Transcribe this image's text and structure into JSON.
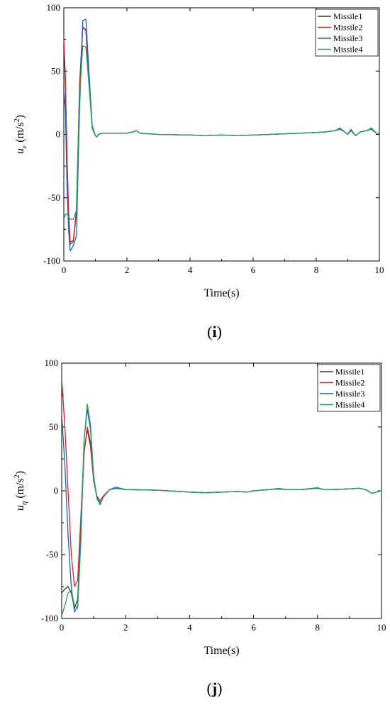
{
  "chart_data": [
    {
      "type": "line",
      "panel_label": "i",
      "xlabel": "Time(s)",
      "ylabel_base": "u",
      "ylabel_sub": "ε",
      "ylabel_unit": " (m/s",
      "ylabel_sup": "2",
      "ylabel_close": ")",
      "xlim": [
        0,
        10
      ],
      "ylim": [
        -100,
        100
      ],
      "xticks": [
        0,
        2,
        4,
        6,
        8,
        10
      ],
      "yticks": [
        -100,
        -50,
        0,
        50,
        100
      ],
      "grid": false,
      "legend_position": "top-right",
      "series": [
        {
          "name": "Missile1",
          "color": "#333333",
          "x": [
            0,
            0.05,
            0.1,
            0.15,
            0.2,
            0.3,
            0.4,
            0.5,
            0.6,
            0.7,
            0.8,
            0.9,
            1.0,
            1.05,
            1.1,
            1.2,
            1.5,
            2.0,
            2.2,
            2.3,
            2.4,
            2.7,
            3.0,
            4.0,
            4.5,
            5.0,
            5.5,
            6.0,
            6.5,
            7.0,
            7.5,
            8.0,
            8.3,
            8.6,
            8.75,
            8.9,
            9.0,
            9.1,
            9.25,
            9.4,
            9.6,
            9.75,
            9.9,
            10.0
          ],
          "y": [
            70,
            40,
            -20,
            -60,
            -85,
            -84,
            -60,
            40,
            85,
            82,
            40,
            5,
            -1,
            -2,
            0,
            1,
            1,
            1,
            2,
            3,
            1,
            0.5,
            0,
            -0.5,
            -1,
            -0.5,
            -1,
            -0.5,
            0,
            0.5,
            1,
            1.5,
            2,
            3,
            4,
            2,
            0,
            3,
            -1,
            2,
            3,
            4,
            1,
            1
          ]
        },
        {
          "name": "Missile2",
          "color": "#d62728",
          "x": [
            0,
            0.05,
            0.1,
            0.15,
            0.2,
            0.3,
            0.4,
            0.5,
            0.6,
            0.7,
            0.8,
            0.9,
            1.0,
            1.05,
            1.1,
            1.2,
            1.5,
            2.0,
            2.2,
            2.3,
            2.4,
            2.7,
            3.0,
            4.0,
            4.5,
            5.0,
            5.5,
            6.0,
            6.5,
            7.0,
            7.5,
            8.0,
            8.3,
            8.6,
            8.75,
            8.9,
            9.0,
            9.1,
            9.25,
            9.4,
            9.6,
            9.75,
            9.9,
            10.0
          ],
          "y": [
            75,
            45,
            -15,
            -60,
            -87,
            -85,
            -62,
            35,
            84,
            83,
            42,
            6,
            -1,
            -2,
            0,
            1,
            1,
            1,
            2,
            3,
            1,
            0.5,
            0,
            -0.5,
            -1,
            -0.5,
            -1,
            -0.5,
            0,
            0.5,
            1,
            1.5,
            2,
            3,
            4,
            2,
            0,
            3,
            -1,
            2,
            3,
            4,
            1,
            1
          ]
        },
        {
          "name": "Missile3",
          "color": "#1f5fbf",
          "x": [
            0,
            0.05,
            0.1,
            0.15,
            0.2,
            0.3,
            0.4,
            0.5,
            0.6,
            0.7,
            0.8,
            0.9,
            1.0,
            1.05,
            1.1,
            1.2,
            1.5,
            2.0,
            2.2,
            2.3,
            2.4,
            2.7,
            3.0,
            4.0,
            4.5,
            5.0,
            5.5,
            6.0,
            6.5,
            7.0,
            7.5,
            8.0,
            8.3,
            8.6,
            8.75,
            8.9,
            9.0,
            9.1,
            9.25,
            9.4,
            9.6,
            9.75,
            9.9,
            10.0
          ],
          "y": [
            35,
            20,
            -40,
            -75,
            -92,
            -88,
            -80,
            20,
            90,
            91,
            48,
            7,
            -1,
            -2,
            0,
            1,
            1,
            1,
            2,
            3,
            1,
            0.5,
            0,
            -0.5,
            -1,
            -0.5,
            -1,
            -0.5,
            0,
            0.5,
            1,
            1.5,
            2,
            3,
            5,
            2,
            0,
            4,
            -1,
            2,
            3,
            5,
            1,
            1
          ]
        },
        {
          "name": "Missile4",
          "color": "#2ca05a",
          "x": [
            0,
            0.05,
            0.1,
            0.15,
            0.2,
            0.3,
            0.4,
            0.5,
            0.6,
            0.7,
            0.8,
            0.9,
            1.0,
            1.05,
            1.1,
            1.2,
            1.5,
            2.0,
            2.2,
            2.3,
            2.4,
            2.7,
            3.0,
            4.0,
            4.5,
            5.0,
            5.5,
            6.0,
            6.5,
            7.0,
            7.5,
            8.0,
            8.3,
            8.6,
            8.75,
            8.9,
            9.0,
            9.1,
            9.25,
            9.4,
            9.6,
            9.75,
            9.9,
            10.0
          ],
          "y": [
            -67,
            -63,
            -63,
            -65,
            -67,
            -67,
            -60,
            30,
            70,
            69,
            38,
            5,
            -1,
            -2,
            0,
            1,
            1,
            1,
            2,
            3,
            1,
            0.5,
            0,
            -0.5,
            -1,
            -0.5,
            -1,
            -0.5,
            0,
            0.5,
            1,
            1.5,
            2,
            3,
            4,
            2,
            0,
            3,
            -1,
            2,
            3,
            4,
            1,
            1
          ]
        }
      ]
    },
    {
      "type": "line",
      "panel_label": "j",
      "xlabel": "Time(s)",
      "ylabel_base": "u",
      "ylabel_sub": "η",
      "ylabel_unit": " (m/s",
      "ylabel_sup": "2",
      "ylabel_close": ")",
      "xlim": [
        0,
        10
      ],
      "ylim": [
        -100,
        100
      ],
      "xticks": [
        0,
        2,
        4,
        6,
        8,
        10
      ],
      "yticks": [
        -100,
        -50,
        0,
        50,
        100
      ],
      "grid": false,
      "legend_position": "top-right",
      "series": [
        {
          "name": "Missile1",
          "color": "#333333",
          "x": [
            0,
            0.1,
            0.2,
            0.3,
            0.4,
            0.5,
            0.6,
            0.7,
            0.8,
            0.9,
            1.0,
            1.1,
            1.2,
            1.3,
            1.5,
            1.7,
            2.0,
            3.0,
            4.0,
            4.5,
            5.0,
            5.5,
            5.8,
            6.0,
            6.5,
            6.8,
            7.0,
            7.5,
            8.0,
            8.2,
            8.5,
            9.0,
            9.3,
            9.5,
            9.7,
            10.0
          ],
          "y": [
            -80,
            -77,
            -75,
            -80,
            -92,
            -85,
            -30,
            30,
            48,
            35,
            8,
            -5,
            -10,
            -5,
            1,
            2,
            1,
            0.5,
            -1,
            -1.5,
            -1,
            -0.5,
            -1,
            0,
            1,
            1.5,
            1,
            1,
            2,
            1,
            1,
            1.5,
            2,
            1,
            -2,
            0
          ]
        },
        {
          "name": "Missile2",
          "color": "#d62728",
          "x": [
            0,
            0.1,
            0.2,
            0.3,
            0.4,
            0.5,
            0.6,
            0.7,
            0.8,
            0.9,
            1.0,
            1.1,
            1.2,
            1.3,
            1.5,
            1.7,
            2.0,
            3.0,
            4.0,
            4.5,
            5.0,
            5.5,
            5.8,
            6.0,
            6.5,
            6.8,
            7.0,
            7.5,
            8.0,
            8.2,
            8.5,
            9.0,
            9.3,
            9.5,
            9.7,
            10.0
          ],
          "y": [
            88,
            50,
            0,
            -50,
            -75,
            -70,
            -20,
            30,
            50,
            38,
            9,
            -4,
            -8,
            -4,
            1,
            2,
            1,
            0.5,
            -1,
            -1.5,
            -1,
            -0.5,
            -1,
            0,
            1,
            1.5,
            1,
            1,
            2,
            1,
            1,
            1.5,
            2,
            1,
            -2,
            0
          ]
        },
        {
          "name": "Missile3",
          "color": "#1f5fbf",
          "x": [
            0,
            0.1,
            0.2,
            0.3,
            0.4,
            0.5,
            0.6,
            0.7,
            0.8,
            0.9,
            1.0,
            1.1,
            1.2,
            1.3,
            1.5,
            1.7,
            2.0,
            3.0,
            4.0,
            4.5,
            5.0,
            5.5,
            5.8,
            6.0,
            6.5,
            6.8,
            7.0,
            7.5,
            8.0,
            8.2,
            8.5,
            9.0,
            9.3,
            9.5,
            9.7,
            10.0
          ],
          "y": [
            60,
            20,
            -35,
            -75,
            -95,
            -90,
            -30,
            40,
            64,
            48,
            10,
            -5,
            -10,
            -5,
            1,
            2,
            1,
            0.5,
            -1,
            -1.5,
            -1,
            -0.5,
            -1,
            0,
            1,
            1.5,
            1,
            1,
            2,
            1,
            1,
            1.5,
            2,
            1,
            -2,
            0
          ]
        },
        {
          "name": "Missile4",
          "color": "#2ca05a",
          "x": [
            0,
            0.1,
            0.2,
            0.3,
            0.4,
            0.5,
            0.6,
            0.7,
            0.8,
            0.9,
            1.0,
            1.1,
            1.2,
            1.3,
            1.5,
            1.7,
            2.0,
            3.0,
            4.0,
            4.5,
            5.0,
            5.5,
            5.8,
            6.0,
            6.5,
            6.8,
            7.0,
            7.5,
            8.0,
            8.2,
            8.5,
            9.0,
            9.3,
            9.5,
            9.7,
            10.0
          ],
          "y": [
            -98,
            -90,
            -80,
            -78,
            -90,
            -92,
            -40,
            40,
            68,
            52,
            12,
            -6,
            -11,
            -5,
            1,
            3,
            1,
            0.5,
            -1,
            -1.5,
            -1,
            -0.5,
            -1,
            0,
            1,
            2,
            1,
            1,
            2.5,
            1,
            1,
            1.5,
            2,
            1,
            -2,
            0
          ]
        }
      ]
    }
  ]
}
